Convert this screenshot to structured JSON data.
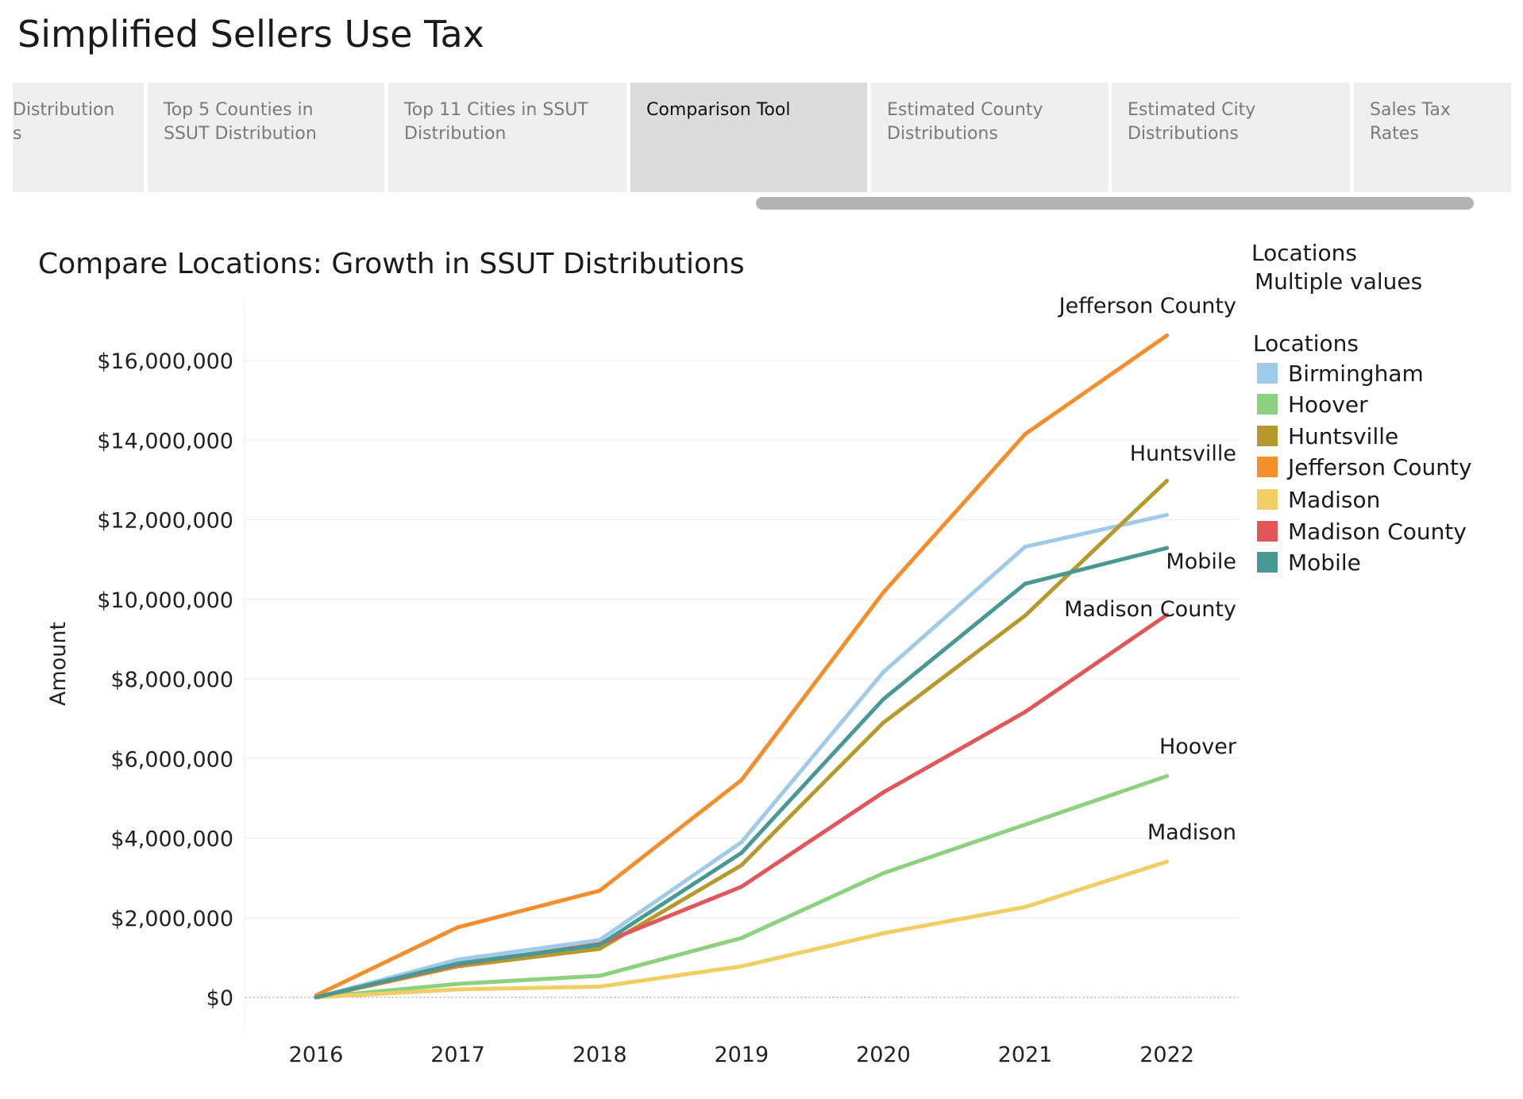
{
  "page_title": "Simplified Sellers Use Tax",
  "tabs": [
    {
      "label": "Distribution\ns",
      "active": false
    },
    {
      "label": "Top 5 Counties in\nSSUT Distribution",
      "active": false
    },
    {
      "label": "Top 11 Cities in SSUT\nDistribution",
      "active": false
    },
    {
      "label": "Comparison Tool",
      "active": true
    },
    {
      "label": "Estimated County\nDistributions",
      "active": false
    },
    {
      "label": "Estimated City\nDistributions",
      "active": false
    },
    {
      "label": "Sales Tax\nRates",
      "active": false
    }
  ],
  "filter": {
    "label": "Locations",
    "value": "Multiple values"
  },
  "legend": {
    "title": "Locations",
    "items": [
      {
        "label": "Birmingham",
        "color": "#a0cbe8"
      },
      {
        "label": "Hoover",
        "color": "#8cd17d"
      },
      {
        "label": "Huntsville",
        "color": "#b6992d"
      },
      {
        "label": "Jefferson County",
        "color": "#f28e2b"
      },
      {
        "label": "Madison",
        "color": "#f1ce63"
      },
      {
        "label": "Madison County",
        "color": "#e15759"
      },
      {
        "label": "Mobile",
        "color": "#499894"
      }
    ]
  },
  "chart_data": {
    "type": "line",
    "title": "Compare Locations: Growth in SSUT Distributions",
    "xlabel": "",
    "ylabel": "Amount",
    "x": [
      "2016",
      "2017",
      "2018",
      "2019",
      "2020",
      "2021",
      "2022"
    ],
    "ylim": [
      -900000,
      17500000
    ],
    "yticks": [
      0,
      2000000,
      4000000,
      6000000,
      8000000,
      10000000,
      12000000,
      14000000,
      16000000
    ],
    "ytick_labels": [
      "$0",
      "$2,000,000",
      "$4,000,000",
      "$6,000,000",
      "$8,000,000",
      "$10,000,000",
      "$12,000,000",
      "$14,000,000",
      "$16,000,000"
    ],
    "grid": true,
    "legend_position": "right",
    "series": [
      {
        "name": "Birmingham",
        "color": "#a0cbe8",
        "end_label": "",
        "values": [
          0,
          950000,
          1440000,
          3900000,
          8170000,
          11320000,
          12120000
        ]
      },
      {
        "name": "Hoover",
        "color": "#8cd17d",
        "end_label": "Hoover",
        "values": [
          0,
          340000,
          540000,
          1490000,
          3120000,
          4340000,
          5560000
        ]
      },
      {
        "name": "Huntsville",
        "color": "#b6992d",
        "end_label": "Huntsville",
        "values": [
          0,
          780000,
          1220000,
          3320000,
          6900000,
          9590000,
          12980000
        ]
      },
      {
        "name": "Jefferson County",
        "color": "#f28e2b",
        "end_label": "Jefferson County",
        "values": [
          50000,
          1760000,
          2680000,
          5460000,
          10170000,
          14150000,
          16630000
        ]
      },
      {
        "name": "Madison",
        "color": "#f1ce63",
        "end_label": "Madison",
        "values": [
          0,
          200000,
          270000,
          780000,
          1610000,
          2270000,
          3410000
        ]
      },
      {
        "name": "Madison County",
        "color": "#e15759",
        "end_label": "Madison County",
        "values": [
          0,
          830000,
          1340000,
          2780000,
          5150000,
          7170000,
          9610000
        ]
      },
      {
        "name": "Mobile",
        "color": "#499894",
        "end_label": "Mobile",
        "values": [
          0,
          850000,
          1320000,
          3630000,
          7490000,
          10390000,
          11290000
        ]
      }
    ]
  }
}
